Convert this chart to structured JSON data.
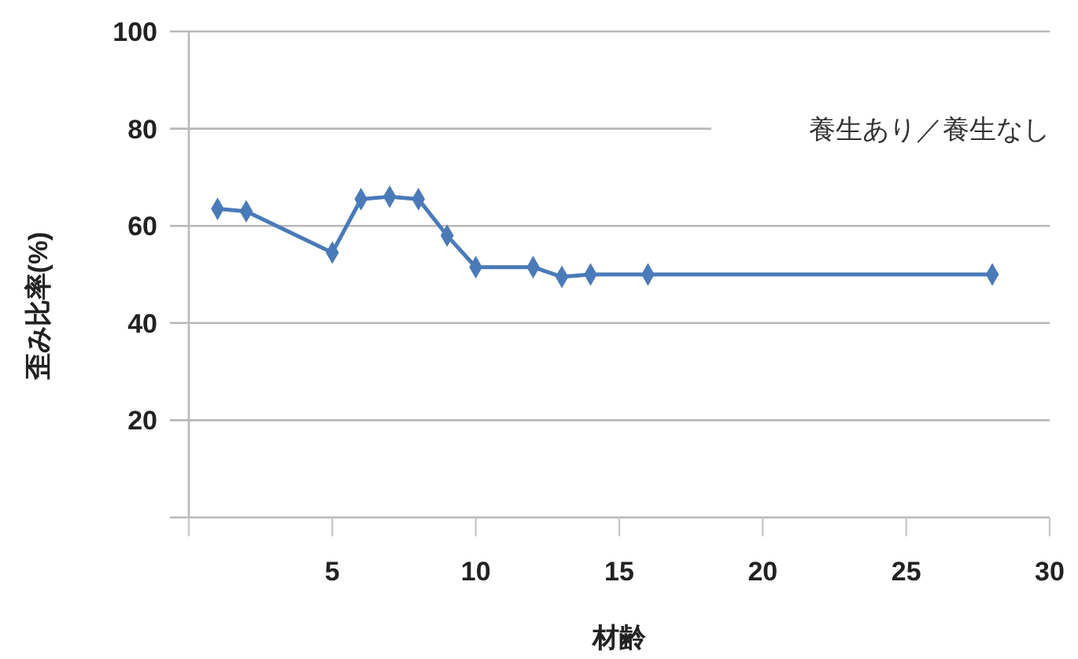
{
  "chart_data": {
    "type": "line",
    "xlabel": "材齢",
    "ylabel": "歪み比率(%)",
    "annotations": [
      "養生あり／養生なし"
    ],
    "x": [
      1,
      2,
      5,
      6,
      7,
      8,
      9,
      10,
      12,
      13,
      14,
      16,
      28
    ],
    "series": [
      {
        "color": "#4a7ab8",
        "values": [
          63.5,
          63,
          54.5,
          65.5,
          66,
          65.5,
          58,
          51.5,
          51.5,
          49.5,
          50,
          50,
          50
        ]
      }
    ],
    "xlim": [
      0,
      30
    ],
    "xticks": [
      {
        "value": 0,
        "label": null
      },
      5,
      10,
      15,
      20,
      25,
      30
    ],
    "ylim": [
      0,
      100
    ],
    "yticks": [
      {
        "value": 0,
        "label": null
      },
      20,
      40,
      60,
      80,
      100
    ],
    "grid": "y",
    "marker": "diamond",
    "line_style": "solid"
  }
}
